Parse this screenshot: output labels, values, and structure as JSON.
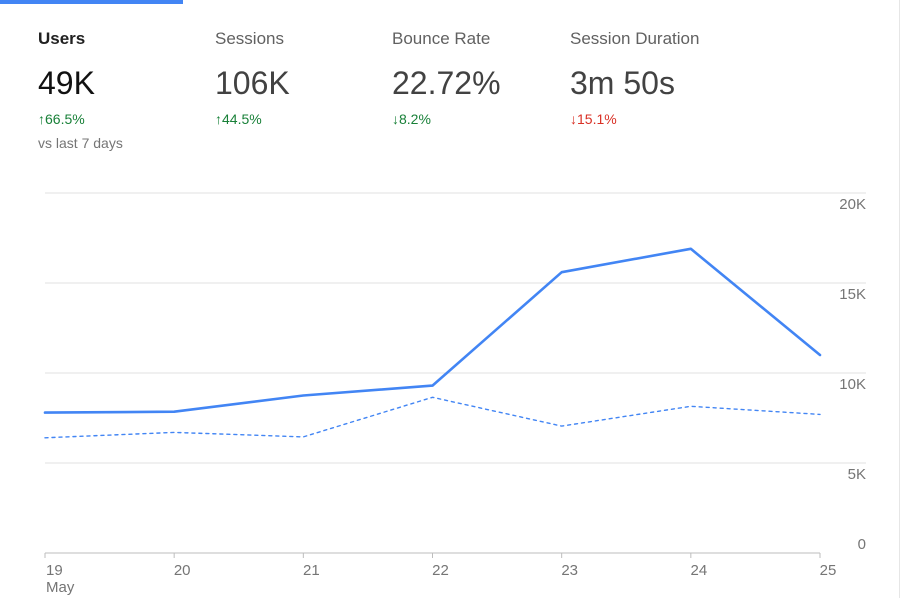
{
  "colors": {
    "accent": "#4285f4",
    "positive": "#188038",
    "negative": "#d93025",
    "grid": "#e0e0e0"
  },
  "metrics": [
    {
      "label": "Users",
      "value": "49K",
      "change": "66.5%",
      "direction": "up",
      "sentiment": "positive",
      "compare": "vs last 7 days",
      "active": true
    },
    {
      "label": "Sessions",
      "value": "106K",
      "change": "44.5%",
      "direction": "up",
      "sentiment": "positive",
      "active": false
    },
    {
      "label": "Bounce Rate",
      "value": "22.72%",
      "change": "8.2%",
      "direction": "down",
      "sentiment": "positive",
      "active": false
    },
    {
      "label": "Session Duration",
      "value": "3m 50s",
      "change": "15.1%",
      "direction": "down",
      "sentiment": "negative",
      "active": false
    }
  ],
  "chart_data": {
    "type": "line",
    "x": [
      "19",
      "20",
      "21",
      "22",
      "23",
      "24",
      "25"
    ],
    "x_sublabel_first": "May",
    "series": [
      {
        "style": "solid",
        "color": "#4285f4",
        "values": [
          7800,
          7850,
          8750,
          9300,
          15600,
          16900,
          11000
        ]
      },
      {
        "style": "dashed",
        "color": "#4285f4",
        "values": [
          6400,
          6700,
          6450,
          8650,
          7050,
          8150,
          7700
        ]
      }
    ],
    "y_ticks": [
      "0",
      "5K",
      "10K",
      "15K",
      "20K"
    ],
    "ylim": [
      0,
      20000
    ],
    "grid": true,
    "y_axis_side": "right"
  }
}
